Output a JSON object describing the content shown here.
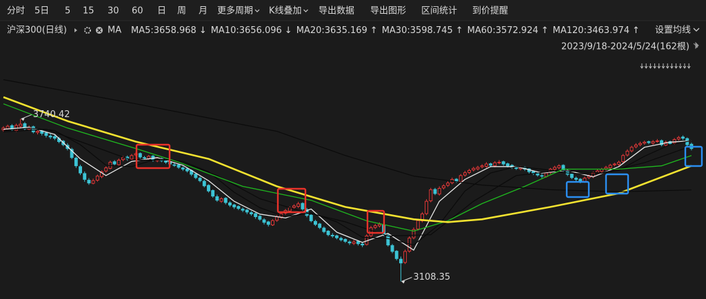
{
  "toolbar": {
    "items": [
      "分时",
      "5日",
      "5",
      "15",
      "30",
      "60",
      "日",
      "周",
      "月"
    ],
    "active_index": 6,
    "menus": [
      {
        "label": "更多周期",
        "dropdown": true
      },
      {
        "label": "K线叠加",
        "dropdown": true
      },
      {
        "label": "导出数据",
        "dropdown": false
      },
      {
        "label": "导出图形",
        "dropdown": false
      },
      {
        "label": "区间统计",
        "dropdown": false
      },
      {
        "label": "到价提醒",
        "dropdown": false
      }
    ]
  },
  "info_bar": {
    "symbol": "沪深300(日线)",
    "ma_label": "MA",
    "settings": "设置均线",
    "range": "2023/9/18-2024/5/24(162根)"
  },
  "chart_data": {
    "type": "candlestick",
    "xlim": [
      -0.8,
      164.4
    ],
    "ylim": [
      3040,
      3975
    ],
    "up_color": "#f03a3a",
    "down_color": "#3cc3d4",
    "legend_separator": ":",
    "ohlc": [
      [
        3698,
        3712,
        3690,
        3705
      ],
      [
        3702,
        3718,
        3696,
        3712
      ],
      [
        3714,
        3720,
        3692,
        3698
      ],
      [
        3696,
        3722,
        3690,
        3715
      ],
      [
        3712,
        3740.42,
        3706,
        3720
      ],
      [
        3722,
        3728,
        3696,
        3702
      ],
      [
        3700,
        3715,
        3694,
        3708
      ],
      [
        3710,
        3714,
        3684,
        3690
      ],
      [
        3688,
        3700,
        3680,
        3692
      ],
      [
        3694,
        3698,
        3676,
        3684
      ],
      [
        3686,
        3690,
        3668,
        3676
      ],
      [
        3674,
        3682,
        3662,
        3670
      ],
      [
        3672,
        3678,
        3658,
        3665
      ],
      [
        3664,
        3670,
        3646,
        3652
      ],
      [
        3654,
        3658,
        3634,
        3640
      ],
      [
        3638,
        3646,
        3618,
        3625
      ],
      [
        3622,
        3628,
        3584,
        3590
      ],
      [
        3588,
        3594,
        3550,
        3558
      ],
      [
        3555,
        3562,
        3522,
        3530
      ],
      [
        3528,
        3536,
        3496,
        3505
      ],
      [
        3502,
        3510,
        3484,
        3491
      ],
      [
        3490,
        3508,
        3486,
        3500
      ],
      [
        3502,
        3524,
        3496,
        3518
      ],
      [
        3516,
        3540,
        3510,
        3535
      ],
      [
        3538,
        3556,
        3532,
        3550
      ],
      [
        3548,
        3578,
        3544,
        3572
      ],
      [
        3574,
        3580,
        3558,
        3565
      ],
      [
        3562,
        3586,
        3556,
        3580
      ],
      [
        3582,
        3596,
        3576,
        3590
      ],
      [
        3592,
        3598,
        3578,
        3585
      ],
      [
        3584,
        3604,
        3580,
        3598
      ],
      [
        3600,
        3612,
        3594,
        3605
      ],
      [
        3606,
        3610,
        3586,
        3592
      ],
      [
        3590,
        3596,
        3582,
        3588
      ],
      [
        3586,
        3600,
        3580,
        3595
      ],
      [
        3596,
        3600,
        3574,
        3580
      ],
      [
        3578,
        3592,
        3572,
        3585
      ],
      [
        3586,
        3590,
        3572,
        3578
      ],
      [
        3580,
        3584,
        3566,
        3572
      ],
      [
        3574,
        3578,
        3558,
        3565
      ],
      [
        3562,
        3570,
        3554,
        3560
      ],
      [
        3562,
        3566,
        3546,
        3552
      ],
      [
        3550,
        3556,
        3538,
        3545
      ],
      [
        3546,
        3550,
        3532,
        3538
      ],
      [
        3540,
        3544,
        3518,
        3525
      ],
      [
        3526,
        3530,
        3506,
        3512
      ],
      [
        3510,
        3516,
        3494,
        3500
      ],
      [
        3498,
        3504,
        3474,
        3480
      ],
      [
        3482,
        3486,
        3454,
        3460
      ],
      [
        3462,
        3466,
        3434,
        3440
      ],
      [
        3438,
        3446,
        3418,
        3424
      ],
      [
        3420,
        3436,
        3414,
        3430
      ],
      [
        3432,
        3436,
        3408,
        3415
      ],
      [
        3414,
        3420,
        3398,
        3405
      ],
      [
        3406,
        3410,
        3390,
        3398
      ],
      [
        3400,
        3404,
        3386,
        3392
      ],
      [
        3390,
        3396,
        3378,
        3385
      ],
      [
        3386,
        3390,
        3370,
        3378
      ],
      [
        3376,
        3382,
        3364,
        3371
      ],
      [
        3372,
        3376,
        3352,
        3360
      ],
      [
        3362,
        3366,
        3344,
        3350
      ],
      [
        3348,
        3354,
        3330,
        3338
      ],
      [
        3340,
        3344,
        3322,
        3330
      ],
      [
        3328,
        3350,
        3324,
        3345
      ],
      [
        3346,
        3366,
        3340,
        3360
      ],
      [
        3358,
        3378,
        3352,
        3372
      ],
      [
        3374,
        3390,
        3368,
        3384
      ],
      [
        3382,
        3400,
        3376,
        3395
      ],
      [
        3396,
        3408,
        3390,
        3402
      ],
      [
        3400,
        3418,
        3394,
        3410
      ],
      [
        3412,
        3416,
        3384,
        3390
      ],
      [
        3388,
        3394,
        3358,
        3365
      ],
      [
        3366,
        3370,
        3338,
        3344
      ],
      [
        3342,
        3348,
        3324,
        3330
      ],
      [
        3332,
        3336,
        3312,
        3318
      ],
      [
        3316,
        3322,
        3296,
        3302
      ],
      [
        3304,
        3308,
        3284,
        3290
      ],
      [
        3288,
        3296,
        3278,
        3285
      ],
      [
        3286,
        3290,
        3272,
        3278
      ],
      [
        3276,
        3282,
        3264,
        3270
      ],
      [
        3272,
        3276,
        3258,
        3264
      ],
      [
        3262,
        3268,
        3250,
        3258
      ],
      [
        3256,
        3270,
        3250,
        3262
      ],
      [
        3264,
        3268,
        3248,
        3255
      ],
      [
        3254,
        3260,
        3242,
        3250
      ],
      [
        3252,
        3292,
        3248,
        3285
      ],
      [
        3286,
        3324,
        3280,
        3317
      ],
      [
        3318,
        3332,
        3312,
        3325
      ],
      [
        3324,
        3338,
        3318,
        3330
      ],
      [
        3328,
        3334,
        3284,
        3290
      ],
      [
        3288,
        3294,
        3244,
        3250
      ],
      [
        3248,
        3254,
        3218,
        3225
      ],
      [
        3226,
        3230,
        3190,
        3197
      ],
      [
        3195,
        3205,
        3108.35,
        3180
      ],
      [
        3182,
        3232,
        3176,
        3225
      ],
      [
        3226,
        3284,
        3220,
        3277
      ],
      [
        3278,
        3318,
        3272,
        3310
      ],
      [
        3312,
        3352,
        3306,
        3345
      ],
      [
        3344,
        3378,
        3338,
        3371
      ],
      [
        3372,
        3428,
        3366,
        3420
      ],
      [
        3422,
        3472,
        3416,
        3465
      ],
      [
        3466,
        3472,
        3444,
        3450
      ],
      [
        3448,
        3478,
        3442,
        3470
      ],
      [
        3472,
        3486,
        3466,
        3480
      ],
      [
        3482,
        3498,
        3476,
        3491
      ],
      [
        3492,
        3512,
        3486,
        3505
      ],
      [
        3506,
        3510,
        3492,
        3498
      ],
      [
        3496,
        3526,
        3490,
        3520
      ],
      [
        3522,
        3538,
        3516,
        3531
      ],
      [
        3532,
        3546,
        3526,
        3540
      ],
      [
        3542,
        3554,
        3536,
        3548
      ],
      [
        3546,
        3558,
        3540,
        3552
      ],
      [
        3554,
        3564,
        3548,
        3558
      ],
      [
        3556,
        3572,
        3550,
        3565
      ],
      [
        3566,
        3570,
        3552,
        3560
      ],
      [
        3558,
        3576,
        3552,
        3570
      ],
      [
        3572,
        3580,
        3564,
        3572
      ],
      [
        3574,
        3578,
        3558,
        3565
      ],
      [
        3566,
        3570,
        3552,
        3558
      ],
      [
        3560,
        3564,
        3546,
        3552
      ],
      [
        3550,
        3556,
        3542,
        3548
      ],
      [
        3546,
        3556,
        3540,
        3550
      ],
      [
        3552,
        3556,
        3538,
        3545
      ],
      [
        3546,
        3550,
        3528,
        3535
      ],
      [
        3536,
        3540,
        3522,
        3528
      ],
      [
        3530,
        3534,
        3516,
        3522
      ],
      [
        3520,
        3526,
        3510,
        3518
      ],
      [
        3516,
        3536,
        3512,
        3530
      ],
      [
        3532,
        3550,
        3526,
        3545
      ],
      [
        3544,
        3558,
        3538,
        3552
      ],
      [
        3550,
        3564,
        3544,
        3558
      ],
      [
        3560,
        3564,
        3534,
        3540
      ],
      [
        3538,
        3544,
        3518,
        3525
      ],
      [
        3526,
        3530,
        3506,
        3512
      ],
      [
        3510,
        3516,
        3498,
        3505
      ],
      [
        3506,
        3510,
        3490,
        3498
      ],
      [
        3496,
        3516,
        3492,
        3510
      ],
      [
        3512,
        3524,
        3506,
        3518
      ],
      [
        3516,
        3536,
        3510,
        3530
      ],
      [
        3532,
        3544,
        3526,
        3538
      ],
      [
        3536,
        3550,
        3530,
        3545
      ],
      [
        3546,
        3558,
        3540,
        3552
      ],
      [
        3550,
        3566,
        3544,
        3560
      ],
      [
        3562,
        3570,
        3556,
        3565
      ],
      [
        3564,
        3578,
        3558,
        3572
      ],
      [
        3574,
        3604,
        3568,
        3598
      ],
      [
        3600,
        3622,
        3594,
        3615
      ],
      [
        3616,
        3636,
        3610,
        3630
      ],
      [
        3632,
        3646,
        3626,
        3639
      ],
      [
        3640,
        3652,
        3634,
        3645
      ],
      [
        3646,
        3656,
        3640,
        3650
      ],
      [
        3652,
        3656,
        3642,
        3648
      ],
      [
        3646,
        3658,
        3640,
        3652
      ],
      [
        3654,
        3662,
        3648,
        3655
      ],
      [
        3656,
        3660,
        3634,
        3640
      ],
      [
        3638,
        3656,
        3632,
        3650
      ],
      [
        3652,
        3656,
        3638,
        3644
      ],
      [
        3646,
        3666,
        3640,
        3660
      ],
      [
        3662,
        3674,
        3656,
        3668
      ],
      [
        3670,
        3676,
        3658,
        3665
      ],
      [
        3664,
        3668,
        3634,
        3640
      ],
      [
        3642,
        3648,
        3618,
        3625
      ]
    ],
    "ma": [
      {
        "name": "MA5",
        "last": 3658.968,
        "trend": "↓",
        "color": "#e6e6e6",
        "label_color": "#f0f0f0",
        "width": 1.3,
        "x": [
          0,
          6,
          12,
          18,
          24,
          30,
          36,
          42,
          48,
          54,
          60,
          66,
          72,
          78,
          84,
          90,
          96,
          102,
          108,
          114,
          120,
          126,
          132,
          138,
          144,
          150,
          156,
          161
        ],
        "values": [
          3700,
          3708,
          3680,
          3585,
          3520,
          3575,
          3590,
          3560,
          3500,
          3420,
          3370,
          3355,
          3390,
          3300,
          3260,
          3295,
          3230,
          3420,
          3505,
          3555,
          3555,
          3530,
          3540,
          3515,
          3555,
          3630,
          3650,
          3655
        ]
      },
      {
        "name": "MA10",
        "last": 3656.096,
        "trend": "↓",
        "color": "#0b0b0b",
        "label_color": "#8a8a8a",
        "width": 1.2,
        "x": [
          0,
          6,
          12,
          18,
          24,
          30,
          36,
          42,
          48,
          54,
          60,
          66,
          72,
          78,
          84,
          90,
          96,
          102,
          108,
          114,
          120,
          126,
          132,
          138,
          144,
          150,
          156,
          161
        ],
        "values": [
          3695,
          3705,
          3695,
          3640,
          3560,
          3555,
          3585,
          3575,
          3535,
          3455,
          3395,
          3360,
          3375,
          3340,
          3280,
          3275,
          3250,
          3330,
          3460,
          3530,
          3555,
          3545,
          3530,
          3525,
          3540,
          3595,
          3640,
          3656
        ]
      },
      {
        "name": "MA20",
        "last": 3635.169,
        "trend": "↑",
        "color": "#0b0b0b",
        "label_color": "#8a8a8a",
        "width": 1.2,
        "x": [
          0,
          10,
          20,
          30,
          40,
          50,
          60,
          70,
          80,
          90,
          100,
          110,
          120,
          130,
          140,
          150,
          161
        ],
        "values": [
          3690,
          3700,
          3640,
          3580,
          3580,
          3520,
          3430,
          3380,
          3340,
          3285,
          3290,
          3420,
          3520,
          3540,
          3530,
          3570,
          3635
        ]
      },
      {
        "name": "MA30",
        "last": 3598.745,
        "trend": "↑",
        "color": "#1fb81f",
        "label_color": "#2fd22f",
        "width": 1.3,
        "x": [
          0,
          15,
          31,
          41,
          56,
          72,
          85,
          96,
          104,
          112,
          122,
          131,
          144,
          154,
          161
        ],
        "values": [
          3799,
          3705,
          3625,
          3572,
          3478,
          3424,
          3344,
          3304,
          3344,
          3411,
          3478,
          3545,
          3545,
          3558,
          3598
        ]
      },
      {
        "name": "MA60",
        "last": 3572.924,
        "trend": "↑",
        "color": "#f2e230",
        "label_color": "#f2e230",
        "width": 2.6,
        "x": [
          0,
          15,
          31,
          48,
          64,
          80,
          96,
          104,
          112,
          128,
          144,
          161
        ],
        "values": [
          3825,
          3732,
          3652,
          3585,
          3478,
          3398,
          3350,
          3339,
          3350,
          3398,
          3451,
          3558
        ]
      },
      {
        "name": "MA120",
        "last": 3463.974,
        "trend": "↑",
        "color": "#0b0b0b",
        "label_color": "#8a8a8a",
        "width": 1.2,
        "x": [
          0,
          31,
          64,
          80,
          96,
          112,
          128,
          144,
          161
        ],
        "values": [
          3893,
          3799,
          3692,
          3598,
          3518,
          3483,
          3465,
          3457,
          3464
        ]
      }
    ],
    "annotations": [
      {
        "x": 4,
        "value": 3740.42,
        "side": "right"
      },
      {
        "x": 93,
        "value": 3108.35,
        "side": "right"
      }
    ]
  }
}
